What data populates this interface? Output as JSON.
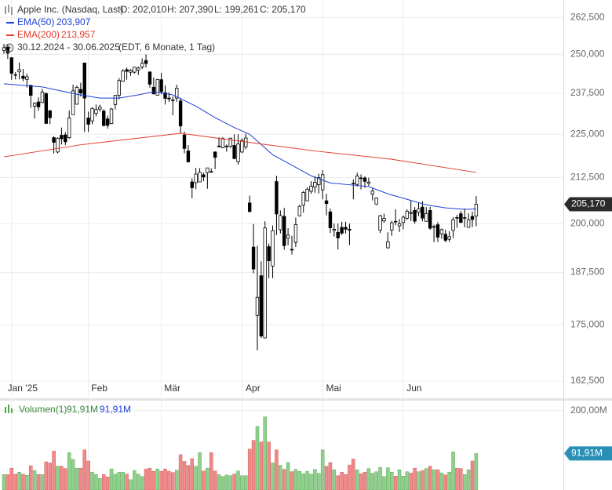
{
  "chart_data": [
    {
      "type": "candlestick",
      "legend_texts": {
        "name": "Apple Inc. (Nasdaq, Last)",
        "ohlc": [
          "O: 202,010",
          "H: 207,390",
          "L: 199,261",
          "C: 205,170"
        ],
        "range": "30.12.2024 - 30.06.2025",
        "range_note": "(EDT, 6 Monate, 1 Tag)"
      },
      "log_scale": true,
      "grid": true,
      "up_color": "#ffffff",
      "down_color": "#000000",
      "wick_color": "#000000",
      "xlim": [
        -1.02,
        145.7
      ],
      "xticks": [
        {
          "value": 2,
          "label": "Jan '25"
        },
        {
          "value": 22,
          "label": "Feb"
        },
        {
          "value": 41,
          "label": "Mär"
        },
        {
          "value": 62,
          "label": "Apr"
        },
        {
          "value": 83,
          "label": "Mai"
        },
        {
          "value": 104,
          "label": "Jun"
        }
      ],
      "ylim": [
        159.0,
        268.6
      ],
      "yticks": [
        {
          "value": 162.5,
          "label": "162,500"
        },
        {
          "value": 175,
          "label": "175,000"
        },
        {
          "value": 187.5,
          "label": "187,500"
        },
        {
          "value": 200,
          "label": "200,000"
        },
        {
          "value": 212.5,
          "label": "212,500"
        },
        {
          "value": 225,
          "label": "225,000"
        },
        {
          "value": 237.5,
          "label": "237,500"
        },
        {
          "value": 250,
          "label": "250,000"
        },
        {
          "value": 262.5,
          "label": "262,500"
        }
      ],
      "last_tag": {
        "value": 205.17,
        "label": "205,170"
      },
      "open": [
        251.3,
        252.4,
        248.9,
        243.4,
        244.3,
        242.9,
        241.9,
        240.0,
        233.5,
        234.8,
        234.6,
        237.4,
        232.1,
        224.0,
        219.8,
        224.7,
        224.8,
        224.0,
        230.9,
        234.1,
        238.7,
        247.2,
        229.9,
        229.0,
        231.3,
        232.6,
        232.0,
        229.6,
        228.2,
        234.0,
        236.9,
        241.3,
        245.0,
        244.2,
        244.2,
        244.9,
        245.9,
        248.0,
        244.3,
        239.4,
        236.9,
        241.8,
        237.7,
        236.0,
        235.4,
        236.0,
        235.1,
        224.8,
        220.1,
        211.3,
        211.1,
        211.3,
        213.3,
        213.9,
        214.2,
        219.8,
        221.4,
        221.0,
        221.4,
        221.4,
        221.7,
        217.0,
        219.8,
        221.3,
        205.5,
        193.9,
        177.2,
        186.7,
        172.0,
        194.0,
        189.1,
        211.4,
        198.4,
        201.9,
        196.2,
        193.3,
        195.1,
        202.0,
        204.9,
        206.1,
        208.7,
        209.9,
        210.5,
        209.1,
        206.1,
        203.1,
        198.2,
        197.7,
        199.0,
        199.0,
        198.5,
        210.9,
        210.6,
        212.4,
        212.4,
        210.9,
        207.9,
        205.2,
        198.3,
        200.7,
        193.7,
        198.3,
        200.6,
        199.4,
        200.3,
        201.4,
        202.9,
        203.5,
        203.0,
        204.4,
        200.6,
        203.5,
        199.1,
        199.7,
        197.3,
        197.2,
        195.9,
        198.2,
        201.6,
        202.6,
        201.5,
        199.0,
        201.9,
        202.01
      ],
      "high": [
        253.5,
        253.5,
        249.1,
        244.2,
        247.3,
        245.2,
        243.7,
        240.2,
        234.7,
        236.2,
        238.9,
        237.8,
        232.3,
        224.4,
        224.1,
        227.0,
        225.6,
        232.2,
        240.2,
        239.9,
        240.8,
        247.2,
        231.8,
        233.2,
        234.0,
        234.0,
        232.6,
        230.6,
        233.0,
        236.9,
        242.3,
        245.2,
        245.7,
        245.2,
        245.9,
        246.0,
        248.7,
        250.0,
        244.3,
        242.5,
        242.1,
        244.0,
        240.0,
        237.8,
        236.5,
        240.2,
        236.1,
        225.8,
        221.8,
        212.3,
        215.2,
        215.2,
        213.9,
        215.2,
        215.1,
        220.0,
        224.1,
        224.1,
        222.0,
        224.0,
        225.0,
        225.0,
        223.8,
        225.2,
        207.5,
        199.9,
        194.2,
        190.3,
        200.6,
        194.8,
        199.5,
        213.0,
        203.5,
        204.2,
        198.8,
        196.8,
        201.6,
        205.0,
        208.8,
        209.8,
        211.5,
        212.9,
        213.6,
        214.6,
        208.0,
        204.0,
        200.0,
        200.0,
        200.5,
        200.5,
        200.0,
        212.0,
        213.9,
        213.4,
        212.9,
        212.5,
        209.5,
        207.0,
        202.3,
        202.6,
        197.7,
        200.7,
        203.8,
        201.2,
        202.1,
        203.8,
        206.2,
        204.4,
        205.7,
        206.0,
        204.4,
        204.5,
        199.7,
        200.4,
        198.7,
        198.4,
        198.0,
        201.7,
        202.3,
        203.4,
        204.0,
        202.7,
        203.2,
        207.39
      ],
      "low": [
        250.2,
        248.5,
        241.8,
        241.9,
        241.9,
        241.3,
        239.3,
        233.0,
        229.7,
        232.1,
        234.5,
        228.0,
        228.0,
        219.4,
        219.4,
        222.0,
        221.8,
        223.6,
        230.9,
        234.0,
        236.5,
        225.7,
        225.7,
        228.0,
        230.4,
        231.8,
        227.3,
        226.7,
        228.0,
        232.5,
        235.6,
        241.2,
        241.8,
        243.0,
        243.7,
        243.3,
        245.2,
        245.7,
        239.3,
        237.2,
        236.8,
        237.2,
        234.0,
        234.8,
        230.7,
        234.9,
        225.2,
        219.4,
        216.7,
        206.8,
        209.3,
        211.2,
        211.5,
        209.4,
        213.9,
        214.9,
        221.1,
        221.0,
        219.9,
        221.0,
        217.7,
        216.2,
        219.5,
        220.6,
        203.0,
        187.3,
        169.2,
        172.0,
        171.9,
        186.1,
        186.1,
        197.0,
        197.4,
        193.2,
        194.4,
        192.0,
        193.9,
        202.0,
        202.9,
        206.0,
        208.0,
        208.3,
        208.1,
        206.5,
        202.2,
        197.5,
        196.6,
        193.3,
        197.0,
        197.4,
        194.4,
        206.5,
        210.0,
        209.2,
        209.6,
        210.2,
        206.2,
        205.0,
        197.5,
        200.2,
        193.5,
        196.8,
        199.6,
        197.8,
        198.5,
        201.0,
        200.7,
        200.0,
        202.0,
        200.6,
        200.6,
        198.4,
        195.1,
        195.2,
        196.0,
        195.1,
        195.2,
        196.2,
        198.9,
        200.2,
        199.0,
        199.0,
        199.1,
        199.26
      ],
      "close": [
        252.2,
        250.42,
        243.85,
        243.36,
        245.0,
        242.21,
        242.7,
        236.85,
        234.4,
        233.28,
        237.87,
        228.26,
        229.98,
        222.64,
        223.83,
        223.66,
        222.78,
        229.86,
        238.26,
        239.36,
        237.59,
        236.0,
        228.01,
        232.8,
        232.47,
        233.22,
        227.63,
        227.65,
        232.62,
        236.87,
        241.53,
        244.6,
        244.47,
        244.87,
        245.83,
        245.55,
        247.1,
        247.04,
        240.36,
        237.3,
        241.84,
        238.03,
        235.93,
        235.74,
        235.33,
        239.07,
        227.48,
        220.84,
        216.98,
        209.68,
        213.49,
        214.0,
        212.69,
        215.24,
        214.1,
        218.27,
        221.53,
        223.75,
        221.53,
        223.85,
        217.9,
        222.13,
        223.19,
        223.89,
        203.19,
        188.38,
        181.46,
        172.42,
        198.85,
        190.42,
        198.15,
        202.52,
        202.14,
        194.27,
        196.98,
        193.16,
        199.74,
        204.6,
        208.37,
        209.28,
        210.14,
        211.21,
        212.5,
        213.32,
        205.35,
        198.89,
        198.51,
        196.25,
        197.49,
        198.53,
        198.27,
        210.79,
        212.93,
        212.33,
        211.45,
        211.26,
        208.78,
        206.86,
        202.09,
        201.36,
        195.27,
        200.21,
        200.42,
        199.95,
        201.7,
        203.27,
        202.82,
        200.63,
        203.92,
        201.45,
        202.67,
        198.78,
        199.2,
        196.45,
        198.42,
        195.64,
        196.58,
        201.0,
        201.5,
        200.3,
        201.56,
        201.0,
        201.08,
        205.17
      ],
      "series": [
        {
          "name": "EMA(50)",
          "legend_value": "203,907",
          "color": "#1f3fd6",
          "x": [
            0,
            10,
            19,
            25,
            30,
            35,
            39,
            44,
            50,
            55,
            60,
            64,
            67,
            70,
            75,
            80,
            85,
            90,
            95,
            100,
            105,
            110,
            115,
            120,
            123
          ],
          "values": [
            240.5,
            239.5,
            237.2,
            236.0,
            236.0,
            237.0,
            238.0,
            237.0,
            233.5,
            230.0,
            227.0,
            225.0,
            222.0,
            219.0,
            216.0,
            213.0,
            211.0,
            210.5,
            210.0,
            208.0,
            206.5,
            205.0,
            204.2,
            203.8,
            203.907
          ]
        },
        {
          "name": "EMA(200)",
          "legend_value": "213,957",
          "color": "#e0392b",
          "x": [
            0,
            20,
            46,
            66,
            81,
            101,
            123
          ],
          "values": [
            218.4,
            221.9,
            225.3,
            222.3,
            220.1,
            217.7,
            213.957
          ]
        }
      ]
    },
    {
      "type": "bar",
      "legend_texts": {
        "name": "Volumen(1)",
        "value_a": "91,91M",
        "value_b": "91,91M"
      },
      "up_color": "#90d08c",
      "down_color": "#f08a8a",
      "xlim": [
        -1.02,
        145.7
      ],
      "ylim": [
        0,
        225
      ],
      "yticks": [
        {
          "value": 200,
          "label": "200,00M"
        }
      ],
      "last_tag": {
        "value": 91.91,
        "label": "91,91M"
      },
      "values": [
        39,
        39,
        55,
        40,
        45,
        40,
        37,
        61,
        49,
        39,
        39,
        71,
        68,
        98,
        60,
        60,
        54,
        94,
        77,
        55,
        55,
        101,
        73,
        45,
        39,
        29,
        39,
        33,
        53,
        40,
        45,
        45,
        40,
        26,
        49,
        40,
        34,
        53,
        55,
        47,
        53,
        47,
        53,
        47,
        44,
        50,
        89,
        72,
        62,
        79,
        60,
        94,
        48,
        55,
        94,
        48,
        39,
        34,
        38,
        36,
        40,
        48,
        36,
        36,
        103,
        125,
        160,
        121,
        184,
        121,
        68,
        101,
        62,
        52,
        69,
        46,
        52,
        47,
        41,
        47,
        40,
        52,
        42,
        101,
        60,
        69,
        51,
        36,
        45,
        39,
        63,
        78,
        51,
        41,
        45,
        54,
        42,
        46,
        57,
        34,
        56,
        45,
        35,
        51,
        35,
        46,
        43,
        55,
        46,
        49,
        54,
        60,
        51,
        51,
        43,
        38,
        45,
        96,
        55,
        54,
        39,
        51,
        73,
        91.91
      ]
    }
  ]
}
